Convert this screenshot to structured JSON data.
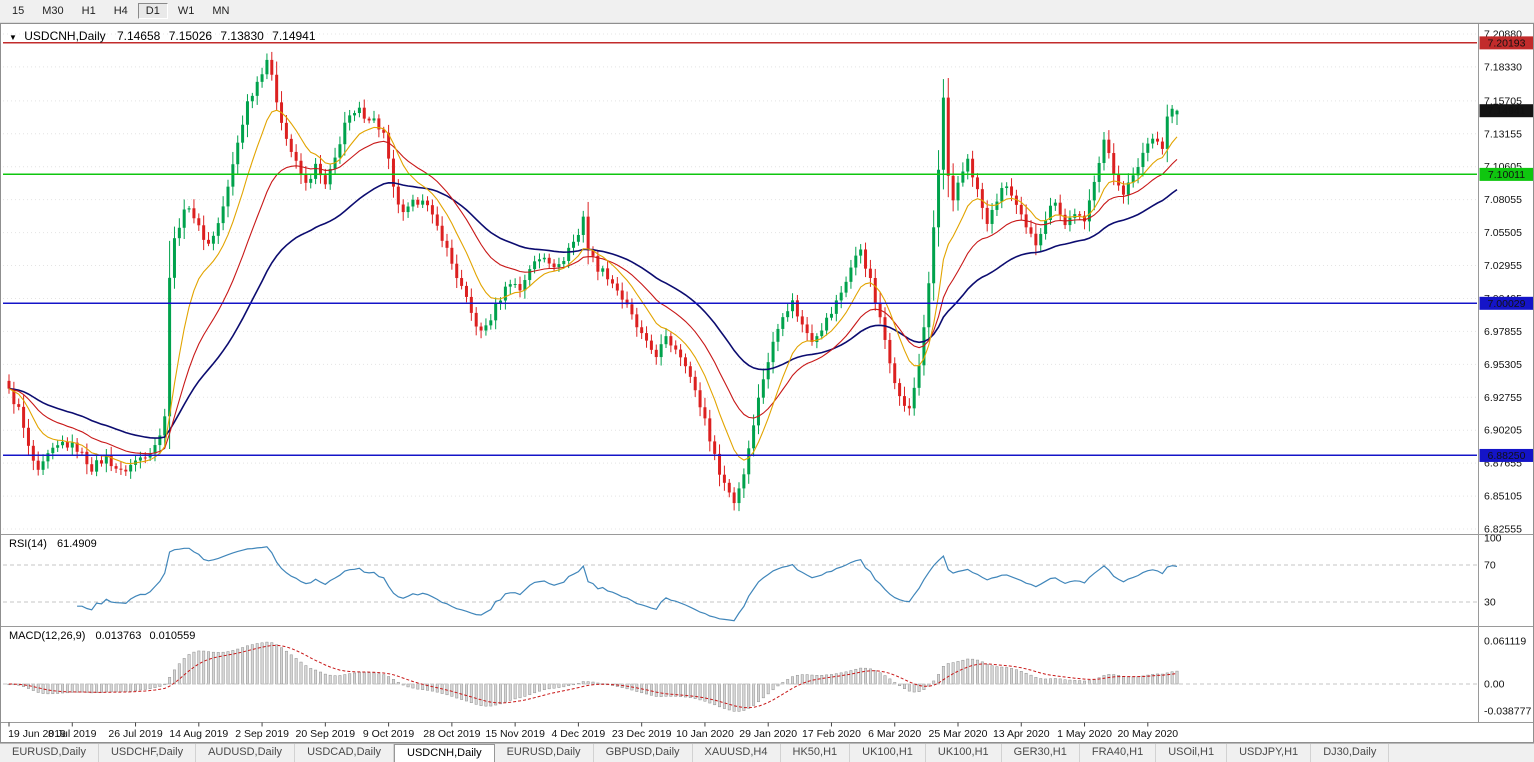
{
  "toolbar": {
    "timeframes": [
      {
        "label": "15",
        "active": false
      },
      {
        "label": "M30",
        "active": false
      },
      {
        "label": "H1",
        "active": false
      },
      {
        "label": "H4",
        "active": false
      },
      {
        "label": "D1",
        "active": true
      },
      {
        "label": "W1",
        "active": false
      },
      {
        "label": "MN",
        "active": false
      }
    ]
  },
  "chart": {
    "symbol_title": "USDCNH,Daily",
    "dropdown_icon": "▼",
    "ohlc": {
      "open": "7.14658",
      "high": "7.15026",
      "low": "7.13830",
      "close": "7.14941"
    },
    "current_price": {
      "value": 7.14941,
      "label": "7.14941",
      "tag_bg": "#141414",
      "tag_fg": "#ffffff"
    },
    "hlines": [
      {
        "price": 7.20193,
        "label": "7.20193",
        "color": "#c22b2b",
        "width": 1.3
      },
      {
        "price": 7.10011,
        "label": "7.10011",
        "color": "#0fc60f",
        "width": 1.7
      },
      {
        "price": 7.00029,
        "label": "7.00029",
        "color": "#1414c8",
        "width": 1.4
      },
      {
        "price": 6.8825,
        "label": "6.88250",
        "color": "#1414c8",
        "width": 1.4
      }
    ],
    "price_axis_labels": [
      "7.20880",
      "7.18330",
      "7.15705",
      "7.13155",
      "7.10605",
      "7.08055",
      "7.05505",
      "7.02955",
      "7.00405",
      "6.97855",
      "6.95305",
      "6.92755",
      "6.90205",
      "6.87655",
      "6.85105",
      "6.82555"
    ],
    "colors": {
      "up": "#00a24c",
      "down": "#dc2020",
      "grid": "#e4e4e4",
      "axis_text": "#111111"
    }
  },
  "chart_data": {
    "type": "candlestick",
    "symbol": "USDCNH",
    "timeframe": "Daily",
    "num_bars": 241,
    "bars_per_label": 13,
    "price_range": {
      "top": 7.2088,
      "bottom": 6.82555
    },
    "x_labels": [
      "19 Jun 2019",
      "8 Jul 2019",
      "26 Jul 2019",
      "14 Aug 2019",
      "2 Sep 2019",
      "20 Sep 2019",
      "9 Oct 2019",
      "28 Oct 2019",
      "15 Nov 2019",
      "4 Dec 2019",
      "23 Dec 2019",
      "10 Jan 2020",
      "29 Jan 2020",
      "17 Feb 2020",
      "6 Mar 2020",
      "25 Mar 2020",
      "13 Apr 2020",
      "1 May 2020",
      "20 May 2020"
    ],
    "noise_amplitude": 0.0035,
    "close_anchors": [
      [
        0,
        6.932
      ],
      [
        2,
        6.918
      ],
      [
        4,
        6.888
      ],
      [
        6,
        6.868
      ],
      [
        8,
        6.882
      ],
      [
        11,
        6.892
      ],
      [
        14,
        6.888
      ],
      [
        17,
        6.873
      ],
      [
        20,
        6.881
      ],
      [
        23,
        6.869
      ],
      [
        26,
        6.878
      ],
      [
        29,
        6.887
      ],
      [
        31,
        6.897
      ],
      [
        32,
        6.916
      ],
      [
        33,
        7.021
      ],
      [
        34,
        7.049
      ],
      [
        35,
        7.062
      ],
      [
        37,
        7.077
      ],
      [
        39,
        7.058
      ],
      [
        41,
        7.046
      ],
      [
        43,
        7.062
      ],
      [
        45,
        7.089
      ],
      [
        47,
        7.125
      ],
      [
        49,
        7.156
      ],
      [
        51,
        7.172
      ],
      [
        53,
        7.19
      ],
      [
        55,
        7.158
      ],
      [
        57,
        7.128
      ],
      [
        59,
        7.108
      ],
      [
        61,
        7.092
      ],
      [
        63,
        7.106
      ],
      [
        65,
        7.091
      ],
      [
        67,
        7.112
      ],
      [
        69,
        7.14
      ],
      [
        72,
        7.149
      ],
      [
        75,
        7.142
      ],
      [
        77,
        7.131
      ],
      [
        79,
        7.088
      ],
      [
        81,
        7.068
      ],
      [
        83,
        7.077
      ],
      [
        85,
        7.083
      ],
      [
        87,
        7.066
      ],
      [
        89,
        7.052
      ],
      [
        91,
        7.031
      ],
      [
        93,
        7.012
      ],
      [
        95,
        6.992
      ],
      [
        97,
        6.977
      ],
      [
        99,
        6.989
      ],
      [
        101,
        7.005
      ],
      [
        103,
        7.018
      ],
      [
        105,
        7.011
      ],
      [
        107,
        7.028
      ],
      [
        110,
        7.037
      ],
      [
        113,
        7.028
      ],
      [
        115,
        7.043
      ],
      [
        117,
        7.053
      ],
      [
        118,
        7.069
      ],
      [
        119,
        7.042
      ],
      [
        121,
        7.028
      ],
      [
        123,
        7.022
      ],
      [
        125,
        7.011
      ],
      [
        127,
        6.997
      ],
      [
        129,
        6.982
      ],
      [
        131,
        6.968
      ],
      [
        133,
        6.961
      ],
      [
        135,
        6.972
      ],
      [
        137,
        6.966
      ],
      [
        139,
        6.955
      ],
      [
        141,
        6.931
      ],
      [
        143,
        6.911
      ],
      [
        145,
        6.881
      ],
      [
        147,
        6.861
      ],
      [
        149,
        6.847
      ],
      [
        151,
        6.869
      ],
      [
        153,
        6.909
      ],
      [
        155,
        6.943
      ],
      [
        157,
        6.969
      ],
      [
        159,
        6.993
      ],
      [
        161,
        7.001
      ],
      [
        163,
        6.983
      ],
      [
        165,
        6.973
      ],
      [
        167,
        6.982
      ],
      [
        169,
        6.993
      ],
      [
        171,
        7.009
      ],
      [
        173,
        7.028
      ],
      [
        175,
        7.043
      ],
      [
        177,
        7.017
      ],
      [
        179,
        6.987
      ],
      [
        181,
        6.957
      ],
      [
        183,
        6.927
      ],
      [
        185,
        6.917
      ],
      [
        187,
        6.953
      ],
      [
        189,
        7.013
      ],
      [
        190,
        7.059
      ],
      [
        191,
        7.103
      ],
      [
        192,
        7.159
      ],
      [
        193,
        7.097
      ],
      [
        194,
        7.077
      ],
      [
        195,
        7.091
      ],
      [
        197,
        7.113
      ],
      [
        199,
        7.087
      ],
      [
        201,
        7.061
      ],
      [
        203,
        7.081
      ],
      [
        205,
        7.092
      ],
      [
        207,
        7.075
      ],
      [
        209,
        7.057
      ],
      [
        211,
        7.047
      ],
      [
        213,
        7.067
      ],
      [
        215,
        7.081
      ],
      [
        217,
        7.061
      ],
      [
        219,
        7.071
      ],
      [
        221,
        7.061
      ],
      [
        223,
        7.097
      ],
      [
        225,
        7.127
      ],
      [
        227,
        7.101
      ],
      [
        229,
        7.087
      ],
      [
        231,
        7.097
      ],
      [
        233,
        7.117
      ],
      [
        235,
        7.131
      ],
      [
        237,
        7.121
      ],
      [
        238,
        7.144
      ],
      [
        239,
        7.151
      ],
      [
        240,
        7.14941
      ]
    ],
    "indicators": {
      "moving_averages": [
        {
          "period": 10,
          "color": "#e2a400",
          "width": 1.1
        },
        {
          "period": 22,
          "color": "#c81818",
          "width": 1.1
        },
        {
          "period": 45,
          "color": "#0c0c70",
          "width": 1.6
        }
      ],
      "rsi": {
        "name": "RSI(14)",
        "period": 14,
        "value": "61.4909",
        "levels": [
          70,
          30
        ],
        "scale_labels": [
          "100",
          "70",
          "30"
        ],
        "color": "#4086ba"
      },
      "macd": {
        "name": "MACD(12,26,9)",
        "fast": 12,
        "slow": 26,
        "signal": 9,
        "value_main": "0.013763",
        "value_signal": "0.010559",
        "scale_labels": [
          "0.061119",
          "0.00",
          "-0.038777"
        ],
        "hist_fill": "#d6d6d6",
        "hist_stroke": "#8f8f8f",
        "signal_color": "#c81818"
      }
    }
  },
  "tabs": [
    {
      "label": "EURUSD,Daily",
      "active": false
    },
    {
      "label": "USDCHF,Daily",
      "active": false
    },
    {
      "label": "AUDUSD,Daily",
      "active": false
    },
    {
      "label": "USDCAD,Daily",
      "active": false
    },
    {
      "label": "USDCNH,Daily",
      "active": true
    },
    {
      "label": "EURUSD,Daily",
      "active": false
    },
    {
      "label": "GBPUSD,Daily",
      "active": false
    },
    {
      "label": "XAUUSD,H4",
      "active": false
    },
    {
      "label": "HK50,H1",
      "active": false
    },
    {
      "label": "UK100,H1",
      "active": false
    },
    {
      "label": "UK100,H1",
      "active": false
    },
    {
      "label": "GER30,H1",
      "active": false
    },
    {
      "label": "FRA40,H1",
      "active": false
    },
    {
      "label": "USOil,H1",
      "active": false
    },
    {
      "label": "USDJPY,H1",
      "active": false
    },
    {
      "label": "DJ30,Daily",
      "active": false
    }
  ]
}
